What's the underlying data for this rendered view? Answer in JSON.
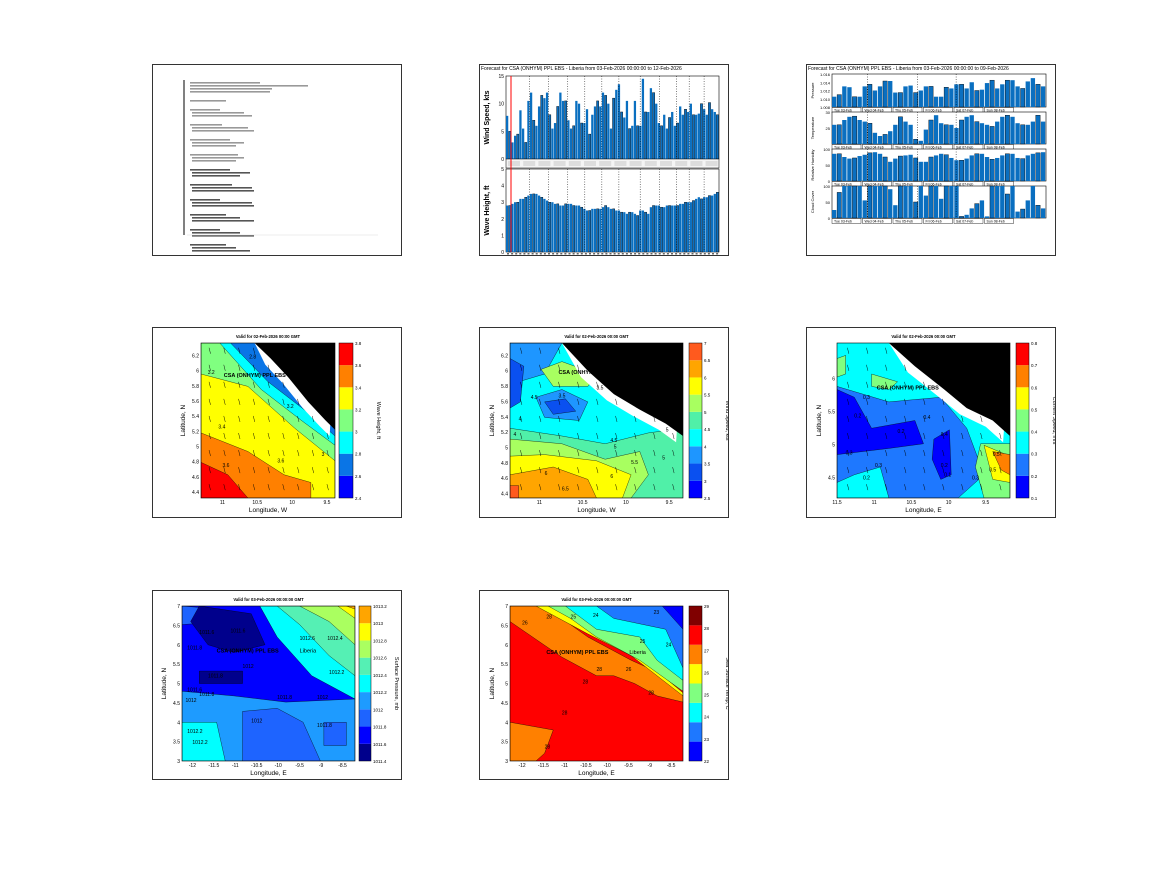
{
  "chart_data": [
    {
      "id": "met-ocean-forecast",
      "type": "bar",
      "title": "Forecast for CSA (ONHYM) PPL EBS - Liberia from 03-Feb-2026 00:00:00 to 12-Feb-2026",
      "bar_color": "#0a6fc0",
      "marker_color": "#ff0000",
      "panels": [
        {
          "ylabel": "Wind Speed, kts",
          "ylim": [
            0,
            15
          ],
          "yticks": [
            "0",
            "5",
            "10",
            "15"
          ],
          "values": [
            7.8,
            5,
            3,
            4.2,
            4.5,
            8.8,
            5.5,
            3,
            10.5,
            12,
            7,
            6,
            9.5,
            11.5,
            11,
            12,
            8,
            5.5,
            6.5,
            9.5,
            12,
            10.5,
            10.5,
            7,
            5.5,
            6,
            10.5,
            10,
            6.5,
            6.5,
            9,
            4.5,
            8,
            9.5,
            10.5,
            9.5,
            12,
            11.5,
            10,
            5.5,
            11,
            12.5,
            13.5,
            8.5,
            7.5,
            10.5,
            5.5,
            6,
            10.5,
            6,
            6,
            14.5,
            8.5,
            8.5,
            12.8,
            12,
            10,
            6.5,
            6,
            8,
            5.5,
            7.5,
            8.5,
            6,
            6.5,
            9.5,
            8,
            9,
            8.5,
            10,
            8,
            8,
            8.2,
            10,
            9,
            8,
            10.2,
            9,
            8.5,
            8
          ]
        },
        {
          "ylabel": "Wave Height, ft",
          "ylim": [
            0,
            5
          ],
          "yticks": [
            "0",
            "1",
            "2",
            "3",
            "4",
            "5"
          ],
          "values": [
            2.8,
            2.8,
            2.9,
            3.0,
            3.0,
            3.2,
            3.2,
            3.3,
            3.4,
            3.5,
            3.5,
            3.5,
            3.4,
            3.3,
            3.2,
            3.1,
            3.0,
            3.0,
            2.9,
            2.9,
            2.8,
            2.8,
            2.9,
            2.9,
            2.9,
            2.8,
            2.8,
            2.8,
            2.7,
            2.6,
            2.5,
            2.5,
            2.6,
            2.6,
            2.6,
            2.6,
            2.7,
            2.8,
            2.7,
            2.6,
            2.6,
            2.5,
            2.5,
            2.4,
            2.4,
            2.3,
            2.4,
            2.4,
            2.3,
            2.2,
            2.5,
            2.5,
            2.4,
            2.3,
            2.7,
            2.8,
            2.8,
            2.8,
            2.7,
            2.7,
            2.8,
            2.8,
            2.8,
            2.8,
            2.8,
            2.9,
            2.9,
            3.0,
            3.0,
            3.0,
            3.1,
            3.2,
            3.3,
            3.2,
            3.3,
            3.3,
            3.4,
            3.4,
            3.5,
            3.6
          ]
        }
      ]
    },
    {
      "id": "weather-forecast",
      "type": "bar",
      "title": "Forecast for CSA (ONHYM) PPL EBS - Liberia from 03-Feb-2026 00:00:00 to 09-Feb-2026",
      "bar_color": "#0a6fc0",
      "day_labels": [
        "Tue 03-Feb",
        "Wed 04-Feb",
        "Thu 05-Feb",
        "Fri 06-Feb",
        "Sat 07-Feb",
        "Sun 08-Feb"
      ],
      "panels": [
        {
          "ylabel": "Pressure",
          "ylim": [
            1.008,
            1.016
          ],
          "yticks": [
            "1.008",
            "1.010",
            "1.012",
            "1.014",
            "1.016"
          ],
          "values": [
            1.0105,
            1.011,
            1.013,
            1.0128,
            1.0105,
            1.0105,
            1.013,
            1.0135,
            1.012,
            1.013,
            1.0143,
            1.0143,
            1.0115,
            1.0115,
            1.013,
            1.0132,
            1.0115,
            1.012,
            1.013,
            1.013,
            1.0105,
            1.0105,
            1.0128,
            1.0125,
            1.0135,
            1.0135,
            1.0125,
            1.014,
            1.012,
            1.0122,
            1.0138,
            1.0145,
            1.0125,
            1.0135,
            1.0145,
            1.0145,
            1.013,
            1.0125,
            1.0142,
            1.015,
            1.0135,
            1.013
          ]
        },
        {
          "ylabel": "Temperature",
          "ylim": [
            20,
            30
          ],
          "yticks": [
            "25",
            "30"
          ],
          "values": [
            26,
            26,
            27.5,
            28.5,
            28.7,
            27.5,
            27,
            26.5,
            23.5,
            22.5,
            23,
            24,
            26,
            28.5,
            27,
            26,
            21.5,
            21,
            24.5,
            27.5,
            29,
            26.5,
            26,
            26,
            25,
            27.5,
            28.5,
            29,
            27,
            26.5,
            26,
            25.5,
            27,
            28.5,
            29,
            28.5,
            26.5,
            26,
            26,
            27,
            29,
            27
          ]
        },
        {
          "ylabel": "Relative Humidity",
          "ylim": [
            0,
            100
          ],
          "yticks": [
            "0",
            "50",
            "100"
          ],
          "values": [
            85,
            85,
            75,
            70,
            72,
            78,
            82,
            88,
            90,
            85,
            75,
            60,
            70,
            78,
            80,
            82,
            72,
            60,
            60,
            75,
            80,
            85,
            82,
            72,
            65,
            65,
            70,
            80,
            85,
            85,
            75,
            68,
            72,
            80,
            85,
            85,
            72,
            70,
            80,
            85,
            88,
            90
          ]
        },
        {
          "ylabel": "Cloud Cover",
          "ylim": [
            0,
            100
          ],
          "yticks": [
            "0",
            "50",
            "100"
          ],
          "values": [
            25,
            80,
            100,
            100,
            100,
            100,
            55,
            100,
            100,
            100,
            100,
            90,
            40,
            100,
            100,
            100,
            50,
            100,
            70,
            100,
            100,
            60,
            100,
            100,
            100,
            5,
            10,
            30,
            45,
            55,
            5,
            100,
            100,
            100,
            75,
            100,
            20,
            28,
            55,
            100,
            40,
            30
          ]
        }
      ]
    },
    {
      "id": "wave-height-map",
      "type": "heatmap",
      "title": "Valid for 02-Feb-2026 00:00 GMT",
      "xlabel": "Longitude, W",
      "ylabel": "Latitude, N",
      "colorbar_label": "Wave Height, ft",
      "xticks": [
        "11",
        "10.5",
        "10",
        "9.5"
      ],
      "yticks": [
        "6.2",
        "6",
        "5.8",
        "5.6",
        "5.4",
        "5.2",
        "5",
        "4.8",
        "4.6",
        "4.4"
      ],
      "cbar_ticks": [
        "2.4",
        "2.6",
        "2.8",
        "3",
        "3.2",
        "3.4",
        "3.6",
        "3.8"
      ],
      "colors": [
        "#0000ff",
        "#0a75e6",
        "#00ffff",
        "#80ff80",
        "#ffff00",
        "#ff8000",
        "#ff0000"
      ],
      "site_label": "CSA (ONHYM) PPL EBS",
      "contour_labels": [
        "3.2",
        "2.8",
        "3",
        "3.2",
        "3.4",
        "3.6",
        "3.6",
        "3"
      ]
    },
    {
      "id": "wind-speed-map",
      "type": "heatmap",
      "title": "Valid for 02-Feb-2026 00:00 GMT",
      "xlabel": "Longitude, W",
      "ylabel": "Latitude, N",
      "colorbar_label": "Wind Speed, kts",
      "xticks": [
        "11",
        "10.5",
        "10",
        "9.5"
      ],
      "yticks": [
        "6.2",
        "6",
        "5.8",
        "5.6",
        "5.4",
        "5.2",
        "5",
        "4.8",
        "4.6",
        "4.4"
      ],
      "cbar_ticks": [
        "2.5",
        "3",
        "3.5",
        "4",
        "4.5",
        "5",
        "5.5",
        "6",
        "6.5",
        "7"
      ],
      "colors": [
        "#0000ff",
        "#0a50f0",
        "#1e96ff",
        "#00ffff",
        "#50f0a8",
        "#a8ff60",
        "#ffff00",
        "#ffa500",
        "#ff5a1e"
      ],
      "site_label": "CSA (ONHYM) PPL EBS",
      "contour_labels": [
        "4.5",
        "3.5",
        "4",
        "3.5",
        "4",
        "4.5",
        "5",
        "5.5",
        "6",
        "6.5",
        "6",
        "5",
        "5",
        "4.5"
      ]
    },
    {
      "id": "current-speed-map",
      "type": "heatmap",
      "title": "Valid for 02-Feb-2026 00:00 GMT",
      "xlabel": "Longitude, E",
      "ylabel": "Latitude, N",
      "colorbar_label": "Current Speed, m/s",
      "xticks": [
        "11.5",
        "11",
        "10.5",
        "10",
        "9.5"
      ],
      "yticks": [
        "6",
        "5.5",
        "5",
        "4.5"
      ],
      "cbar_ticks": [
        "0.1",
        "0.2",
        "0.3",
        "0.4",
        "0.5",
        "0.6",
        "0.7",
        "0.8"
      ],
      "colors": [
        "#0000ff",
        "#1e78ff",
        "#00ffff",
        "#80ff80",
        "#ffff00",
        "#ff8000",
        "#ff0000"
      ],
      "site_label": "CSA (ONHYM) PPL EBS",
      "contour_labels": [
        "0.3",
        "0.2",
        "0.3",
        "0.4",
        "0.2",
        "0.2",
        "0.3",
        "0.2",
        "0.1",
        "0.3",
        "0.5",
        "0.5",
        "0.4"
      ]
    },
    {
      "id": "surface-pressure-map",
      "type": "heatmap",
      "title": "Valid for 03-Feb-2026 00:00:00 GMT",
      "xlabel": "Longitude, E",
      "ylabel": "Latitude, N",
      "colorbar_label": "Surface Pressure, mb",
      "xticks": [
        "-12",
        "-11.5",
        "-11",
        "-10.5",
        "-10",
        "-9.5",
        "-9",
        "-8.5"
      ],
      "yticks": [
        "7",
        "6.5",
        "6",
        "5.5",
        "5",
        "4.5",
        "4",
        "3.5",
        "3"
      ],
      "cbar_ticks": [
        "1011.4",
        "1011.6",
        "1011.8",
        "1012",
        "1012.2",
        "1012.4",
        "1012.6",
        "1012.8",
        "1013",
        "1013.2"
      ],
      "colors": [
        "#00008c",
        "#0000ff",
        "#1e64ff",
        "#1e9bff",
        "#00ffff",
        "#55f0b4",
        "#aaff60",
        "#ffff00",
        "#ffa500"
      ],
      "site_label": "CSA (ONHYM) PPL EBS",
      "place_label": "Liberia",
      "contour_labels": [
        "1011.6",
        "1011.6",
        "1012.6",
        "1011.8",
        "1011.8",
        "1011.6",
        "1012.4",
        "1012.2",
        "1012",
        "1011.8",
        "1012",
        "1012",
        "1012.2",
        "1012.2",
        "1011.8",
        "1012",
        "1011.8"
      ]
    },
    {
      "id": "sea-surface-temp-map",
      "type": "heatmap",
      "title": "Valid for 03-Feb-2026 00:00:00 GMT",
      "xlabel": "Longitude, E",
      "ylabel": "Latitude, N",
      "colorbar_label": "Sea Surface Temp, C",
      "xticks": [
        "-12",
        "-11.5",
        "-11",
        "-10.5",
        "-10",
        "-9.5",
        "-9",
        "-8.5"
      ],
      "yticks": [
        "7",
        "6.5",
        "6",
        "5.5",
        "5",
        "4.5",
        "4",
        "3.5",
        "3"
      ],
      "cbar_ticks": [
        "22",
        "23",
        "24",
        "25",
        "26",
        "27",
        "28",
        "29"
      ],
      "colors": [
        "#0000ff",
        "#1e78ff",
        "#00ffff",
        "#80ff80",
        "#ffff00",
        "#ff8000",
        "#ff0000",
        "#800000"
      ],
      "site_label": "CSA (ONHYM) PPL EBS",
      "place_label": "Liberia",
      "contour_labels": [
        "26",
        "25",
        "24",
        "23",
        "28",
        "24",
        "25",
        "26",
        "28",
        "28",
        "28",
        "28",
        "28"
      ]
    }
  ]
}
